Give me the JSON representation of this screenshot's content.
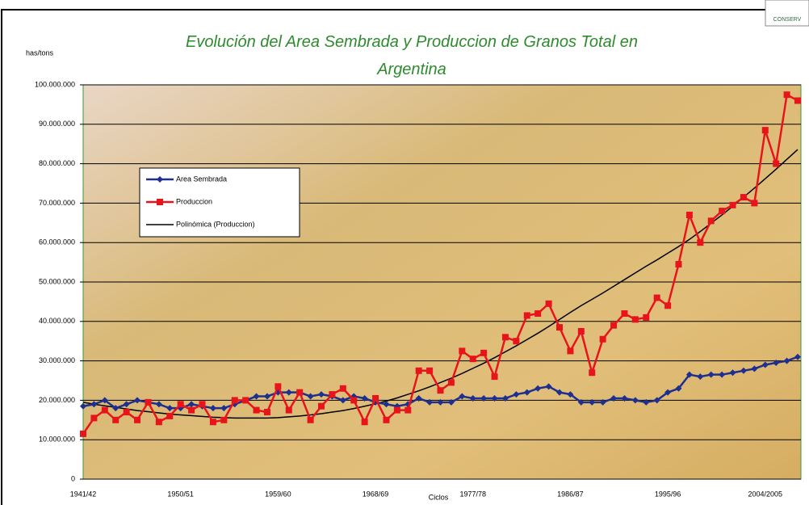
{
  "chart_data": {
    "type": "line",
    "title": "Evolución del Area Sembrada y Produccion de Granos Total en Argentina",
    "ylabel": "has/tons",
    "xlabel": "Ciclos",
    "logo": "CONSERV",
    "categories": [
      "1941/42",
      null,
      null,
      null,
      null,
      null,
      null,
      null,
      null,
      "1950/51",
      null,
      null,
      null,
      null,
      null,
      null,
      null,
      null,
      "1959/60",
      null,
      null,
      null,
      null,
      null,
      null,
      null,
      null,
      "1968/69",
      null,
      null,
      null,
      null,
      null,
      null,
      null,
      null,
      "1977/78",
      null,
      null,
      null,
      null,
      null,
      null,
      null,
      null,
      "1986/87",
      null,
      null,
      null,
      null,
      null,
      null,
      null,
      null,
      "1995/96",
      null,
      null,
      null,
      null,
      null,
      null,
      null,
      null,
      "2004/2005",
      null,
      null,
      null
    ],
    "ylim": [
      0,
      100000000
    ],
    "yticks": [
      0,
      {
        "value": 10000000,
        "label": "10.000.000"
      },
      {
        "value": 20000000,
        "label": "20.000.000"
      },
      {
        "value": 30000000,
        "label": "30.000.000"
      },
      {
        "value": 40000000,
        "label": "40.000.000"
      },
      {
        "value": 50000000,
        "label": "50.000.000"
      },
      {
        "value": 60000000,
        "label": "60.000.000"
      },
      {
        "value": 70000000,
        "label": "70.000.000"
      },
      {
        "value": 80000000,
        "label": "80.000.000"
      },
      {
        "value": 90000000,
        "label": "90.000.000"
      },
      {
        "value": 100000000,
        "label": "100.000.000"
      }
    ],
    "grid": true,
    "legend": "upper left",
    "series": [
      {
        "name": "Area Sembrada",
        "color": "#1f2f8f",
        "marker": "diamond",
        "values": [
          18500000,
          19000000,
          20000000,
          18000000,
          19000000,
          20000000,
          19500000,
          19000000,
          18000000,
          18000000,
          19000000,
          18500000,
          18000000,
          18000000,
          19000000,
          20000000,
          21000000,
          21000000,
          22000000,
          22000000,
          22000000,
          21000000,
          21500000,
          21000000,
          20000000,
          21000000,
          20500000,
          19500000,
          19000000,
          18500000,
          19000000,
          20500000,
          19500000,
          19500000,
          19500000,
          21000000,
          20500000,
          20500000,
          20500000,
          20500000,
          21500000,
          22000000,
          23000000,
          23500000,
          22000000,
          21500000,
          19500000,
          19500000,
          19500000,
          20500000,
          20500000,
          20000000,
          19500000,
          20000000,
          22000000,
          23000000,
          26500000,
          26000000,
          26500000,
          26500000,
          27000000,
          27500000,
          28000000,
          29000000,
          29500000,
          30000000,
          31000000
        ]
      },
      {
        "name": "Produccion",
        "color": "#e8141c",
        "marker": "square",
        "values": [
          11500000,
          15500000,
          17500000,
          15000000,
          17000000,
          15000000,
          19500000,
          14500000,
          16000000,
          19000000,
          17500000,
          19000000,
          14500000,
          15000000,
          20000000,
          20000000,
          17500000,
          17000000,
          23500000,
          17500000,
          22000000,
          15000000,
          18500000,
          21500000,
          23000000,
          20000000,
          14500000,
          20500000,
          15000000,
          17500000,
          17500000,
          27500000,
          27500000,
          22500000,
          24500000,
          32500000,
          30500000,
          32000000,
          26000000,
          36000000,
          35000000,
          41500000,
          42000000,
          44500000,
          38500000,
          32500000,
          37500000,
          27000000,
          35500000,
          39000000,
          42000000,
          40500000,
          41000000,
          46000000,
          44000000,
          54500000,
          67000000,
          60000000,
          65500000,
          68000000,
          69500000,
          71500000,
          70000000,
          88500000,
          80000000,
          97500000,
          96000000
        ]
      },
      {
        "name": "Polinómica (Produccion)",
        "color": "#000000",
        "marker": "none",
        "values": [
          19500000,
          19000000,
          18600000,
          18200000,
          17800000,
          17400000,
          17100000,
          16800000,
          16500000,
          16300000,
          16100000,
          15900000,
          15700000,
          15600000,
          15500000,
          15500000,
          15500000,
          15500000,
          15600000,
          15800000,
          16000000,
          16300000,
          16600000,
          17000000,
          17400000,
          17900000,
          18500000,
          19100000,
          19800000,
          20600000,
          21500000,
          22400000,
          23400000,
          24500000,
          25600000,
          26800000,
          28100000,
          29400000,
          30800000,
          32300000,
          33800000,
          35400000,
          37000000,
          38700000,
          40500000,
          42300000,
          44000000,
          45600000,
          47200000,
          48900000,
          50600000,
          52300000,
          54000000,
          55600000,
          57300000,
          59000000,
          60800000,
          62800000,
          64900000,
          67000000,
          69200000,
          71500000,
          73800000,
          76200000,
          78600000,
          81100000,
          83600000
        ]
      }
    ]
  }
}
